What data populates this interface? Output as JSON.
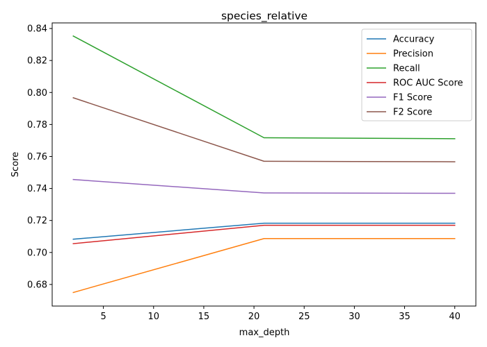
{
  "chart_data": {
    "type": "line",
    "title": "species_relative",
    "xlabel": "max_depth",
    "ylabel": "Score",
    "x": [
      2,
      21,
      40
    ],
    "xlim": [
      -0.1,
      42.1
    ],
    "ylim": [
      0.6665,
      0.8435
    ],
    "xticks": [
      5,
      10,
      15,
      20,
      25,
      30,
      35,
      40
    ],
    "yticks": [
      0.68,
      0.7,
      0.72,
      0.74,
      0.76,
      0.78,
      0.8,
      0.82,
      0.84
    ],
    "ytick_labels": [
      "0.68",
      "0.70",
      "0.72",
      "0.74",
      "0.76",
      "0.78",
      "0.80",
      "0.82",
      "0.84"
    ],
    "grid": false,
    "legend_position": "top-right",
    "series": [
      {
        "name": "Accuracy",
        "color": "#1f77b4",
        "values": [
          0.7083,
          0.7183,
          0.7183
        ]
      },
      {
        "name": "Precision",
        "color": "#ff7f0e",
        "values": [
          0.675,
          0.7087,
          0.7087
        ]
      },
      {
        "name": "Recall",
        "color": "#2ca02c",
        "values": [
          0.8353,
          0.7717,
          0.7711
        ]
      },
      {
        "name": "ROC AUC Score",
        "color": "#d62728",
        "values": [
          0.7055,
          0.717,
          0.717
        ]
      },
      {
        "name": "F1 Score",
        "color": "#9467bd",
        "values": [
          0.7456,
          0.7372,
          0.737
        ]
      },
      {
        "name": "F2 Score",
        "color": "#8c564b",
        "values": [
          0.7967,
          0.757,
          0.7567
        ]
      }
    ]
  }
}
